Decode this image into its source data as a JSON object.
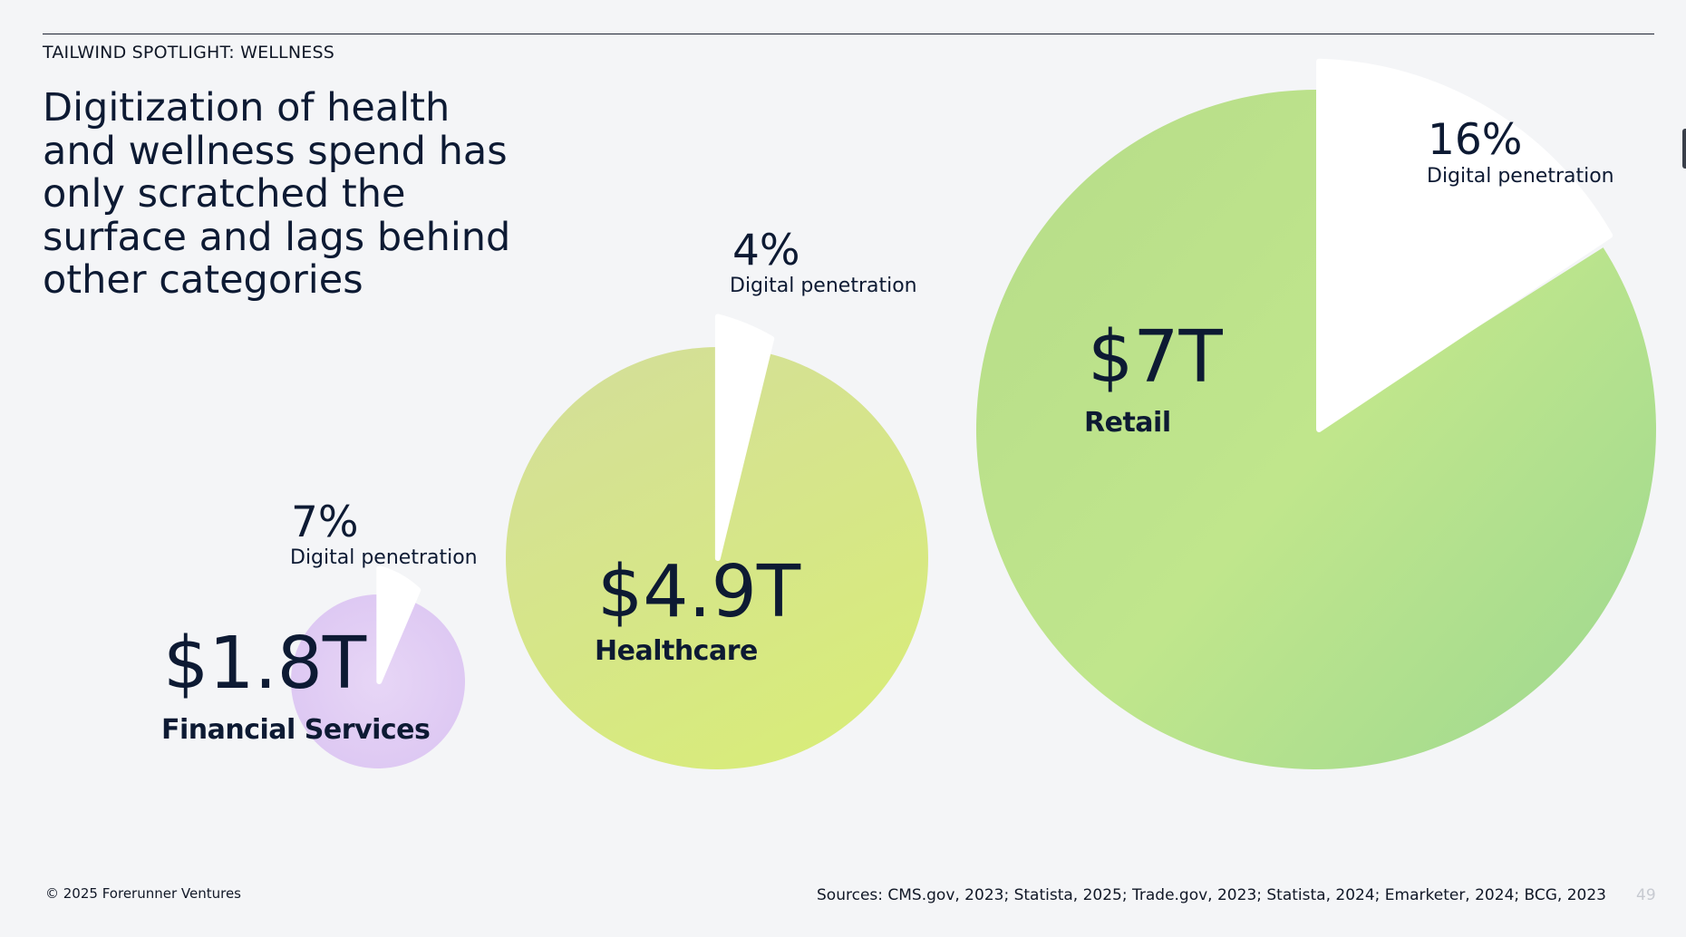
{
  "header": {
    "eyebrow": "TAILWIND SPOTLIGHT: WELLNESS",
    "title": "Digitization of health and wellness spend has only scratched the surface and lags behind other categories"
  },
  "chart_data": {
    "type": "pie",
    "title": "",
    "series": [
      {
        "name": "Financial Services",
        "value_label": "$1.8T",
        "spend_trillions": 1.8,
        "digital_penetration_label": "7%",
        "digital_penetration": 0.07,
        "penetration_caption": "Digital penetration",
        "fill_color": "#e2cff4"
      },
      {
        "name": "Healthcare",
        "value_label": "$4.9T",
        "spend_trillions": 4.9,
        "digital_penetration_label": "4%",
        "digital_penetration": 0.04,
        "penetration_caption": "Digital penetration",
        "fill_color": "#d9e78c"
      },
      {
        "name": "Retail",
        "value_label": "$7T",
        "spend_trillions": 7,
        "digital_penetration_label": "16%",
        "digital_penetration": 0.16,
        "penetration_caption": "Digital penetration",
        "fill_color": "#b9e28a"
      }
    ],
    "digital_slice_color": "#ffffff"
  },
  "footer": {
    "copyright": "© 2025 Forerunner Ventures",
    "sources": "Sources: CMS.gov, 2023; Statista, 2025; Trade.gov, 2023; Statista, 2024; Emarketer, 2024; BCG, 2023",
    "page_number": "49"
  }
}
